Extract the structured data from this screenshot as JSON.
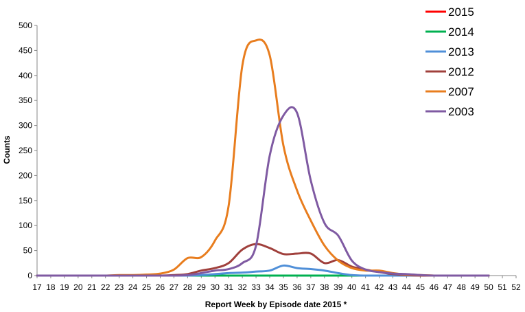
{
  "chart_data": {
    "type": "line",
    "title": "",
    "xlabel": "Report Week by Episode date 2015  *",
    "ylabel": "Counts",
    "x": [
      17,
      18,
      19,
      20,
      21,
      22,
      23,
      24,
      25,
      26,
      27,
      28,
      29,
      30,
      31,
      32,
      33,
      34,
      35,
      36,
      37,
      38,
      39,
      40,
      41,
      42,
      43,
      44,
      45,
      46,
      47,
      48,
      49,
      50,
      51,
      52
    ],
    "ylim": [
      0,
      500
    ],
    "yticks": [
      0,
      50,
      100,
      150,
      200,
      250,
      300,
      350,
      400,
      450,
      500
    ],
    "grid": false,
    "legend_position": "top-right",
    "series": [
      {
        "name": "2015",
        "color": "#ff0000",
        "x": [
          17,
          18,
          19,
          20,
          21,
          22,
          23,
          24,
          25,
          26,
          27,
          28,
          29,
          30,
          31,
          32,
          33,
          34,
          35,
          36,
          37,
          38,
          39,
          40,
          41,
          42,
          43,
          44,
          45,
          46,
          47,
          48,
          49,
          50
        ],
        "values": [
          0,
          0,
          0,
          0,
          0,
          0,
          0,
          0,
          0,
          0,
          0,
          0,
          0,
          0,
          0,
          0,
          0,
          0,
          0,
          0,
          0,
          0,
          0,
          0,
          0,
          0,
          0,
          0,
          0,
          0,
          0,
          0,
          0,
          0
        ]
      },
      {
        "name": "2014",
        "color": "#00b050",
        "x": [
          17,
          18,
          19,
          20,
          21,
          22,
          23,
          24,
          25,
          26,
          27,
          28,
          29,
          30,
          31,
          32,
          33,
          34,
          35,
          36,
          37,
          38,
          39,
          40,
          41,
          42,
          43,
          44,
          45,
          46,
          47,
          48,
          49,
          50
        ],
        "values": [
          0,
          0,
          0,
          0,
          0,
          0,
          0,
          0,
          0,
          0,
          0,
          0,
          0,
          0,
          0,
          0,
          0,
          0,
          0,
          0,
          0,
          0,
          0,
          0,
          0,
          0,
          0,
          0,
          0,
          0,
          0,
          0,
          0,
          0
        ]
      },
      {
        "name": "2013",
        "color": "#4f8fd8",
        "x": [
          17,
          18,
          19,
          20,
          21,
          22,
          23,
          24,
          25,
          26,
          27,
          28,
          29,
          30,
          31,
          32,
          33,
          34,
          35,
          36,
          37,
          38,
          39,
          40,
          41,
          42,
          43,
          44,
          45,
          46,
          47,
          48,
          49,
          50
        ],
        "values": [
          0,
          0,
          0,
          0,
          0,
          0,
          0,
          0,
          0,
          0,
          0,
          0,
          1,
          3,
          5,
          6,
          8,
          10,
          20,
          15,
          13,
          10,
          5,
          1,
          0,
          0,
          0,
          0,
          0,
          0,
          0,
          0,
          0,
          0
        ]
      },
      {
        "name": "2012",
        "color": "#a0403c",
        "x": [
          17,
          18,
          19,
          20,
          21,
          22,
          23,
          24,
          25,
          26,
          27,
          28,
          29,
          30,
          31,
          32,
          33,
          34,
          35,
          36,
          37,
          38,
          39,
          40,
          41,
          42,
          43,
          44,
          45,
          46,
          47,
          48,
          49,
          50
        ],
        "values": [
          0,
          0,
          0,
          0,
          0,
          0,
          0,
          0,
          0,
          0,
          1,
          3,
          10,
          15,
          25,
          52,
          63,
          55,
          43,
          44,
          44,
          25,
          31,
          18,
          12,
          7,
          3,
          1,
          0,
          0,
          0,
          0,
          0,
          0
        ]
      },
      {
        "name": "2007",
        "color": "#e87d1e",
        "x": [
          17,
          18,
          19,
          20,
          21,
          22,
          23,
          24,
          25,
          26,
          27,
          28,
          29,
          30,
          31,
          32,
          33,
          34,
          35,
          36,
          37,
          38,
          39,
          40,
          41,
          42,
          43,
          44,
          45,
          46,
          47,
          48,
          49,
          50
        ],
        "values": [
          0,
          0,
          0,
          0,
          0,
          0,
          1,
          1,
          2,
          4,
          12,
          35,
          37,
          70,
          140,
          420,
          470,
          440,
          260,
          170,
          110,
          60,
          30,
          15,
          10,
          10,
          5,
          2,
          1,
          0,
          0,
          0,
          0,
          0
        ]
      },
      {
        "name": "2003",
        "color": "#7f5aa2",
        "x": [
          17,
          18,
          19,
          20,
          21,
          22,
          23,
          24,
          25,
          26,
          27,
          28,
          29,
          30,
          31,
          32,
          33,
          34,
          35,
          36,
          37,
          38,
          39,
          40,
          41,
          42,
          43,
          44,
          45,
          46,
          47,
          48,
          49,
          50
        ],
        "values": [
          0,
          0,
          0,
          0,
          0,
          0,
          0,
          0,
          0,
          0,
          0,
          1,
          5,
          10,
          13,
          25,
          60,
          240,
          320,
          325,
          190,
          105,
          80,
          30,
          12,
          7,
          4,
          3,
          1,
          0,
          0,
          0,
          0,
          0
        ]
      }
    ]
  }
}
